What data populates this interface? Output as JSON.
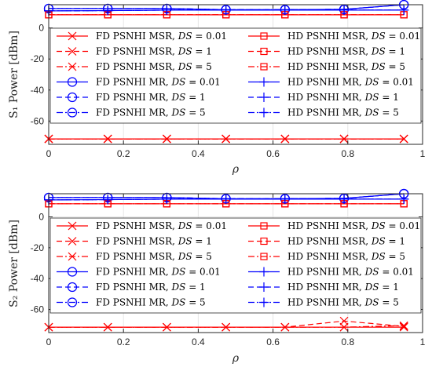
{
  "chart_data": [
    {
      "type": "line",
      "ylabel": "S₁ Power [dBm]",
      "xlabel": "ρ",
      "xlim": [
        0,
        1
      ],
      "ylim": [
        -75,
        15
      ],
      "xticks": [
        "0",
        "0.2",
        "0.4",
        "0.6",
        "0.8",
        "1"
      ],
      "yticks": [
        "-60",
        "-40",
        "-20",
        "0"
      ],
      "grid": true,
      "legend_placement": "inside-upper",
      "x": [
        0,
        0.158,
        0.316,
        0.474,
        0.632,
        0.79,
        0.95
      ],
      "series": [
        {
          "name": "FD PSNHI MSR, DS = 0.01",
          "method": "FD PSNHI MSR",
          "ds": "0.01",
          "color": "#ff0000",
          "marker": "x",
          "dash": "solid",
          "values": [
            -71.5,
            -71.5,
            -71.5,
            -71.5,
            -71.5,
            -71.5,
            -71.5
          ]
        },
        {
          "name": "FD PSNHI MSR, DS = 1",
          "method": "FD PSNHI MSR",
          "ds": "1",
          "color": "#ff0000",
          "marker": "x",
          "dash": "dashed",
          "values": [
            -71.5,
            -71.5,
            -71.5,
            -71.5,
            -71.5,
            -71.5,
            -71.5
          ]
        },
        {
          "name": "FD PSNHI MSR, DS = 5",
          "method": "FD PSNHI MSR",
          "ds": "5",
          "color": "#ff0000",
          "marker": "x",
          "dash": "dashdot",
          "values": [
            -71.5,
            -71.5,
            -71.5,
            -71.5,
            -71.5,
            -71.5,
            -71.5
          ]
        },
        {
          "name": "FD PSNHI MR, DS = 0.01",
          "method": "FD PSNHI MR",
          "ds": "0.01",
          "color": "#0000ff",
          "marker": "o",
          "dash": "solid",
          "values": [
            12.5,
            12.5,
            12.5,
            11.8,
            11.8,
            12.0,
            15.0
          ]
        },
        {
          "name": "FD PSNHI MR, DS = 1",
          "method": "FD PSNHI MR",
          "ds": "1",
          "color": "#0000ff",
          "marker": "o",
          "dash": "dashed",
          "values": [
            12.5,
            12.5,
            12.5,
            11.8,
            11.8,
            12.0,
            15.0
          ]
        },
        {
          "name": "FD PSNHI MR, DS = 5",
          "method": "FD PSNHI MR",
          "ds": "5",
          "color": "#0000ff",
          "marker": "o",
          "dash": "dashdot",
          "values": [
            12.5,
            12.5,
            12.5,
            11.8,
            11.8,
            12.0,
            15.0
          ]
        },
        {
          "name": "HD PSNHI MSR, DS = 0.01",
          "method": "HD PSNHI MSR",
          "ds": "0.01",
          "color": "#ff0000",
          "marker": "square",
          "dash": "solid",
          "values": [
            8.5,
            8.5,
            8.5,
            8.5,
            8.5,
            8.5,
            8.5
          ]
        },
        {
          "name": "HD PSNHI MSR, DS = 1",
          "method": "HD PSNHI MSR",
          "ds": "1",
          "color": "#ff0000",
          "marker": "square",
          "dash": "dashed",
          "values": [
            8.5,
            8.5,
            8.5,
            8.5,
            8.5,
            8.5,
            8.5
          ]
        },
        {
          "name": "HD PSNHI MSR, DS = 5",
          "method": "HD PSNHI MSR",
          "ds": "5",
          "color": "#ff0000",
          "marker": "square",
          "dash": "dashdot",
          "values": [
            8.5,
            8.5,
            8.5,
            8.5,
            8.5,
            8.5,
            8.5
          ]
        },
        {
          "name": "HD PSNHI MR, DS = 0.01",
          "method": "HD PSNHI MR",
          "ds": "0.01",
          "color": "#0000ff",
          "marker": "plus",
          "dash": "solid",
          "values": [
            11.0,
            11.2,
            11.5,
            11.5,
            11.5,
            11.5,
            11.5
          ]
        },
        {
          "name": "HD PSNHI MR, DS = 1",
          "method": "HD PSNHI MR",
          "ds": "1",
          "color": "#0000ff",
          "marker": "plus",
          "dash": "dashed",
          "values": [
            11.0,
            11.2,
            11.5,
            11.5,
            11.5,
            11.5,
            11.5
          ]
        },
        {
          "name": "HD PSNHI MR, DS = 5",
          "method": "HD PSNHI MR",
          "ds": "5",
          "color": "#0000ff",
          "marker": "plus",
          "dash": "dashdot",
          "values": [
            11.0,
            11.2,
            11.5,
            11.5,
            11.5,
            11.5,
            11.5
          ]
        }
      ]
    },
    {
      "type": "line",
      "ylabel": "S₂ Power [dBm]",
      "xlabel": "ρ",
      "xlim": [
        0,
        1
      ],
      "ylim": [
        -75,
        15
      ],
      "xticks": [
        "0",
        "0.2",
        "0.4",
        "0.6",
        "0.8",
        "1"
      ],
      "yticks": [
        "-60",
        "-40",
        "-20",
        "0"
      ],
      "grid": true,
      "legend_placement": "inside-upper",
      "x": [
        0,
        0.158,
        0.316,
        0.474,
        0.632,
        0.79,
        0.95
      ],
      "series": [
        {
          "name": "FD PSNHI MSR, DS = 0.01",
          "method": "FD PSNHI MSR",
          "ds": "0.01",
          "color": "#ff0000",
          "marker": "x",
          "dash": "solid",
          "values": [
            -71.5,
            -71.5,
            -71.5,
            -71.5,
            -71.5,
            -71.5,
            -71.5
          ]
        },
        {
          "name": "FD PSNHI MSR, DS = 1",
          "method": "FD PSNHI MSR",
          "ds": "1",
          "color": "#ff0000",
          "marker": "x",
          "dash": "dashed",
          "values": [
            -71.5,
            -71.5,
            -71.5,
            -71.5,
            -71.5,
            -67.5,
            -71.0
          ]
        },
        {
          "name": "FD PSNHI MSR, DS = 5",
          "method": "FD PSNHI MSR",
          "ds": "5",
          "color": "#ff0000",
          "marker": "x",
          "dash": "dashdot",
          "values": [
            -71.5,
            -71.5,
            -71.5,
            -71.5,
            -71.5,
            -71.5,
            -70.5
          ]
        },
        {
          "name": "FD PSNHI MR, DS = 0.01",
          "method": "FD PSNHI MR",
          "ds": "0.01",
          "color": "#0000ff",
          "marker": "o",
          "dash": "solid",
          "values": [
            12.5,
            12.5,
            12.5,
            11.8,
            11.8,
            12.0,
            15.0
          ]
        },
        {
          "name": "FD PSNHI MR, DS = 1",
          "method": "FD PSNHI MR",
          "ds": "1",
          "color": "#0000ff",
          "marker": "o",
          "dash": "dashed",
          "values": [
            12.5,
            12.5,
            12.5,
            11.8,
            11.8,
            12.0,
            15.0
          ]
        },
        {
          "name": "FD PSNHI MR, DS = 5",
          "method": "FD PSNHI MR",
          "ds": "5",
          "color": "#0000ff",
          "marker": "o",
          "dash": "dashdot",
          "values": [
            12.5,
            12.5,
            12.5,
            11.8,
            11.8,
            12.0,
            15.0
          ]
        },
        {
          "name": "HD PSNHI MSR, DS = 0.01",
          "method": "HD PSNHI MSR",
          "ds": "0.01",
          "color": "#ff0000",
          "marker": "square",
          "dash": "solid",
          "values": [
            8.5,
            8.5,
            8.5,
            8.5,
            8.5,
            8.5,
            8.5
          ]
        },
        {
          "name": "HD PSNHI MSR, DS = 1",
          "method": "HD PSNHI MSR",
          "ds": "1",
          "color": "#ff0000",
          "marker": "square",
          "dash": "dashed",
          "values": [
            8.5,
            8.5,
            8.5,
            8.5,
            8.5,
            8.5,
            8.5
          ]
        },
        {
          "name": "HD PSNHI MSR, DS = 5",
          "method": "HD PSNHI MSR",
          "ds": "5",
          "color": "#ff0000",
          "marker": "square",
          "dash": "dashdot",
          "values": [
            8.5,
            8.5,
            8.5,
            8.5,
            8.5,
            8.5,
            8.5
          ]
        },
        {
          "name": "HD PSNHI MR, DS = 0.01",
          "method": "HD PSNHI MR",
          "ds": "0.01",
          "color": "#0000ff",
          "marker": "plus",
          "dash": "solid",
          "values": [
            11.0,
            11.2,
            11.5,
            11.5,
            11.5,
            11.5,
            11.5
          ]
        },
        {
          "name": "HD PSNHI MR, DS = 1",
          "method": "HD PSNHI MR",
          "ds": "1",
          "color": "#0000ff",
          "marker": "plus",
          "dash": "dashed",
          "values": [
            11.0,
            11.2,
            11.5,
            11.5,
            11.5,
            11.5,
            11.5
          ]
        },
        {
          "name": "HD PSNHI MR, DS = 5",
          "method": "HD PSNHI MR",
          "ds": "5",
          "color": "#0000ff",
          "marker": "plus",
          "dash": "dashdot",
          "values": [
            11.0,
            11.2,
            11.5,
            11.5,
            11.5,
            11.5,
            11.5
          ]
        }
      ]
    }
  ]
}
